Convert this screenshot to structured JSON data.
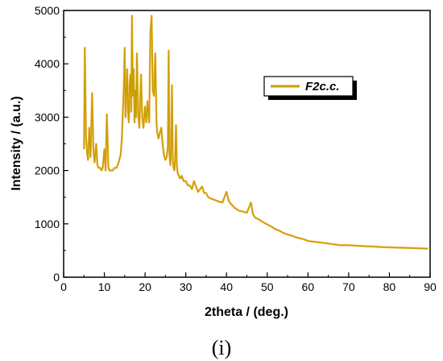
{
  "chart_data": {
    "type": "line",
    "xlabel": "2theta / (deg.)",
    "ylabel": "Intensity / (a.u.)",
    "xlim": [
      0,
      90
    ],
    "ylim": [
      0,
      5000
    ],
    "xticks": [
      0,
      10,
      20,
      30,
      40,
      50,
      60,
      70,
      80,
      90
    ],
    "yticks": [
      0,
      1000,
      2000,
      3000,
      4000,
      5000
    ],
    "grid": false,
    "legend_position": "top-right",
    "panel_label": "(i)",
    "series": [
      {
        "name": "F2c.c.",
        "color": "#c8a000",
        "highlight_color": "#ff8c00",
        "x": [
          5.0,
          5.2,
          5.5,
          5.8,
          6.0,
          6.3,
          6.6,
          7.0,
          7.3,
          7.6,
          8.0,
          8.3,
          8.6,
          9.0,
          9.3,
          9.6,
          10.0,
          10.3,
          10.6,
          11.0,
          11.3,
          11.6,
          12.0,
          12.5,
          13.0,
          13.5,
          14.0,
          14.3,
          14.6,
          14.8,
          15.0,
          15.2,
          15.4,
          15.6,
          15.8,
          16.0,
          16.2,
          16.4,
          16.6,
          16.8,
          17.0,
          17.2,
          17.4,
          17.6,
          17.8,
          18.0,
          18.3,
          18.6,
          19.0,
          19.3,
          19.6,
          20.0,
          20.3,
          20.6,
          21.0,
          21.3,
          21.6,
          21.9,
          22.2,
          22.5,
          22.8,
          23.0,
          23.3,
          23.6,
          24.0,
          24.3,
          24.6,
          25.0,
          25.3,
          25.6,
          25.8,
          26.0,
          26.2,
          26.4,
          26.6,
          26.8,
          27.0,
          27.2,
          27.4,
          27.6,
          27.8,
          28.0,
          28.3,
          28.6,
          29.0,
          29.5,
          30.0,
          30.5,
          31.0,
          31.5,
          32.0,
          32.5,
          33.0,
          33.5,
          34.0,
          34.5,
          35.0,
          35.5,
          36.0,
          37.0,
          38.0,
          39.0,
          39.5,
          40.0,
          40.5,
          41.0,
          42.0,
          43.0,
          44.0,
          45.0,
          45.5,
          46.0,
          46.5,
          47.0,
          48.0,
          49.0,
          50.0,
          51.0,
          52.0,
          53.0,
          54.0,
          55.0,
          56.0,
          57.0,
          58.0,
          59.0,
          60.0,
          62.0,
          64.0,
          66.0,
          68.0,
          70.0,
          72.0,
          74.0,
          76.0,
          78.0,
          80.0,
          82.0,
          84.0,
          86.0,
          88.0,
          89.5
        ],
        "y": [
          2400,
          4300,
          2600,
          2300,
          2200,
          2800,
          2250,
          3450,
          2400,
          2150,
          2500,
          2100,
          2050,
          2050,
          2000,
          2050,
          2400,
          2000,
          3050,
          2050,
          2000,
          2000,
          2000,
          2050,
          2050,
          2150,
          2300,
          2600,
          3200,
          3600,
          4300,
          3000,
          3500,
          3900,
          3100,
          2900,
          3600,
          3800,
          3100,
          4900,
          3400,
          3900,
          2900,
          3500,
          3000,
          4200,
          3100,
          2800,
          3800,
          3000,
          2800,
          3200,
          2900,
          3300,
          2900,
          4600,
          4900,
          3500,
          3400,
          4200,
          2900,
          2700,
          2600,
          2700,
          2800,
          2500,
          2300,
          2200,
          2250,
          2450,
          4250,
          2300,
          2100,
          2450,
          3600,
          2200,
          2050,
          2000,
          2250,
          2850,
          2100,
          1950,
          1900,
          1850,
          1900,
          1800,
          1800,
          1720,
          1720,
          1650,
          1800,
          1700,
          1600,
          1650,
          1700,
          1580,
          1580,
          1500,
          1480,
          1450,
          1420,
          1400,
          1500,
          1600,
          1440,
          1380,
          1300,
          1250,
          1230,
          1210,
          1300,
          1400,
          1180,
          1120,
          1080,
          1030,
          990,
          950,
          900,
          870,
          830,
          800,
          780,
          750,
          730,
          710,
          680,
          660,
          640,
          620,
          600,
          600,
          590,
          580,
          575,
          565,
          560,
          555,
          550,
          545,
          540,
          535
        ]
      }
    ]
  }
}
